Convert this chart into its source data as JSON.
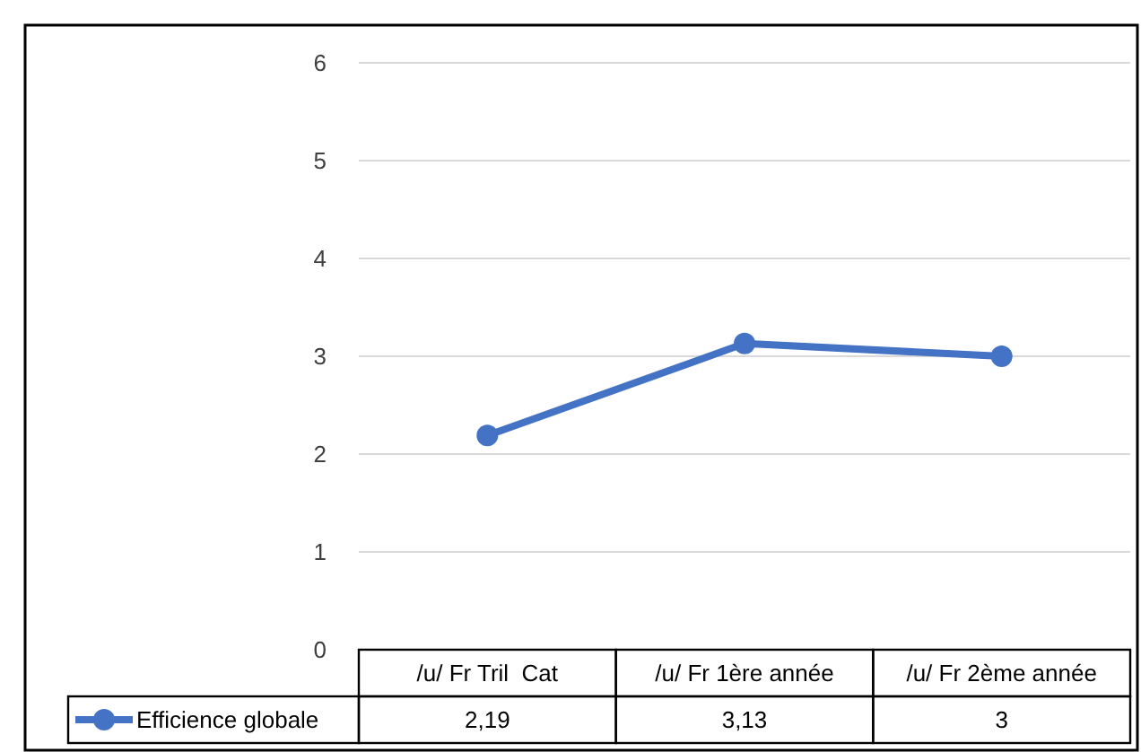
{
  "chart_data": {
    "type": "line",
    "categories": [
      "/u/ Fr Tril  Cat",
      "/u/ Fr 1ère année",
      "/u/ Fr 2ème année"
    ],
    "series": [
      {
        "name": "Efficience globale",
        "color": "#4472c4",
        "values": [
          2.19,
          3.13,
          3
        ],
        "value_labels": [
          "2,19",
          "3,13",
          "3"
        ]
      }
    ],
    "ylim": [
      0,
      6
    ],
    "yticks": [
      0,
      1,
      2,
      3,
      4,
      5,
      6
    ],
    "grid": "y",
    "marker": "circle",
    "line_style": "solid",
    "legend": "bottom"
  }
}
